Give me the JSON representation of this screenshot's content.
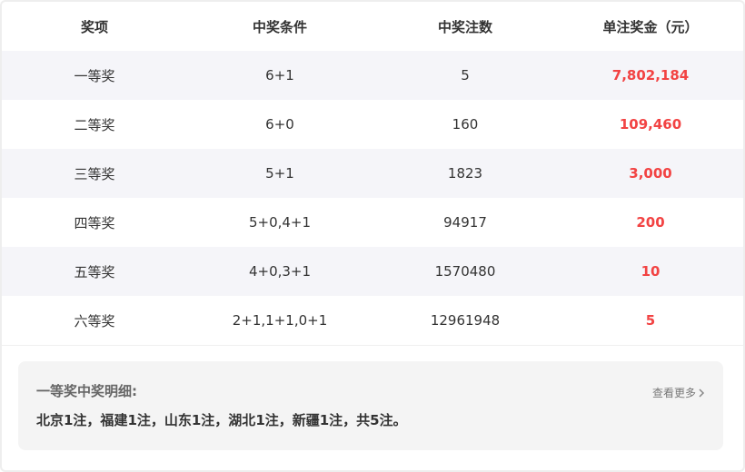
{
  "table": {
    "headers": [
      "奖项",
      "中奖条件",
      "中奖注数",
      "单注奖金（元）"
    ],
    "rows": [
      {
        "level": "一等奖",
        "condition": "6+1",
        "count": "5",
        "prize": "7,802,184"
      },
      {
        "level": "二等奖",
        "condition": "6+0",
        "count": "160",
        "prize": "109,460"
      },
      {
        "level": "三等奖",
        "condition": "5+1",
        "count": "1823",
        "prize": "3,000"
      },
      {
        "level": "四等奖",
        "condition": "5+0,4+1",
        "count": "94917",
        "prize": "200"
      },
      {
        "level": "五等奖",
        "condition": "4+0,3+1",
        "count": "1570480",
        "prize": "10"
      },
      {
        "level": "六等奖",
        "condition": "2+1,1+1,0+1",
        "count": "12961948",
        "prize": "5"
      }
    ]
  },
  "detail": {
    "title": "一等奖中奖明细:",
    "text": "北京1注，福建1注，山东1注，湖北1注，新疆1注，共5注。",
    "more_label": "查看更多",
    "more_icon": "chevron-right-icon"
  },
  "colors": {
    "prize": "#f24343",
    "alt_row": "#f5f5f9",
    "panel": "#f4f4f4"
  }
}
